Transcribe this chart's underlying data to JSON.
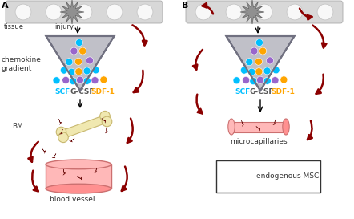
{
  "title_A": "A",
  "title_B": "B",
  "bg_color": "#ffffff",
  "cell_colors": [
    "#00bfff",
    "#9966cc",
    "#ffa500"
  ],
  "arrow_color": "#8b0000",
  "label_tissue": "tissue",
  "label_injury": "injury",
  "label_chemokine": "chemokine\ngradient",
  "label_SCF": "SCF",
  "label_GCSF": "G-CSF",
  "label_SDF": "SDF-1",
  "label_BM": "BM",
  "label_blood_vessel": "blood vessel",
  "label_microcapillaries": "microcapillaries",
  "label_endogenous_MSC": "endogenous MSC",
  "scf_color": "#00bfff",
  "gcsf_color": "#555555",
  "sdf_color": "#ffa500"
}
